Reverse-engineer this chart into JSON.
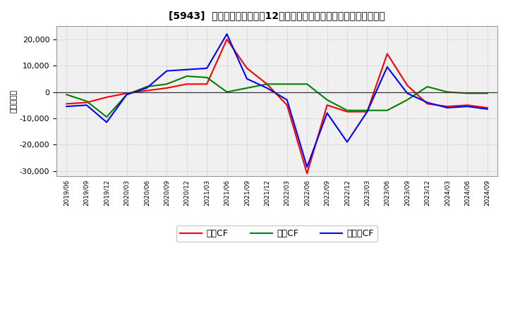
{
  "title": "[5943]  キャッシュフローの12か月移動合計の対前年同期増減額の推移",
  "ylabel": "（百万円）",
  "background_color": "#ffffff",
  "plot_bg_color": "#f0f0f0",
  "grid_color": "#bbbbbb",
  "x_labels": [
    "2019/06",
    "2019/09",
    "2019/12",
    "2020/03",
    "2020/06",
    "2020/09",
    "2020/12",
    "2021/03",
    "2021/06",
    "2021/09",
    "2021/12",
    "2022/03",
    "2022/06",
    "2022/09",
    "2022/12",
    "2023/03",
    "2023/06",
    "2023/09",
    "2023/12",
    "2024/03",
    "2024/06",
    "2024/09"
  ],
  "営業CF": [
    -4500,
    -4000,
    -2000,
    -500,
    500,
    1500,
    3000,
    3000,
    20000,
    9000,
    3000,
    -5000,
    -31000,
    -5000,
    -7500,
    -7500,
    14500,
    2500,
    -4500,
    -5500,
    -5000,
    -6000
  ],
  "投資CF": [
    -1000,
    -3500,
    -9500,
    -1000,
    2000,
    3000,
    6000,
    5500,
    0,
    1500,
    3000,
    3000,
    3000,
    -3000,
    -7000,
    -7000,
    -7000,
    -3000,
    2000,
    0,
    -500,
    -500
  ],
  "フリーCF": [
    -5500,
    -5000,
    -11500,
    -1000,
    1500,
    8000,
    8500,
    9000,
    22000,
    5000,
    1500,
    -3000,
    -28500,
    -8000,
    -19000,
    -7500,
    9500,
    -500,
    -4000,
    -6000,
    -5500,
    -6500
  ],
  "line_colors": {
    "営業CF": "#ff0000",
    "投資CF": "#008000",
    "フリーCF": "#0000ff"
  },
  "ylim": [
    -32000,
    25000
  ],
  "yticks": [
    -30000,
    -20000,
    -10000,
    0,
    10000,
    20000
  ],
  "legend_labels": [
    "営業CF",
    "投資CF",
    "フリーCF"
  ]
}
